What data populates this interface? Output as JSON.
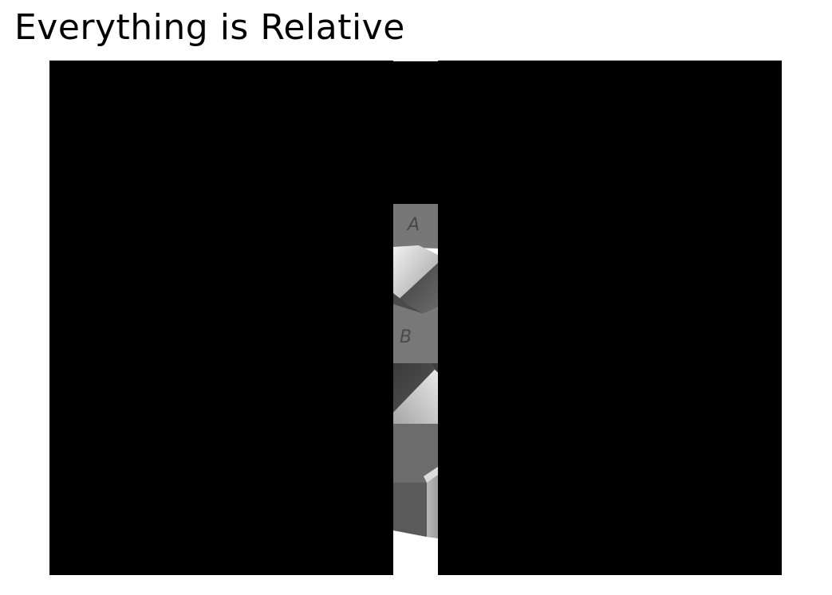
{
  "slide": {
    "title": "Everything is Relative"
  },
  "figure": {
    "illusion": "checker-shadow",
    "visible_tiles": [
      {
        "label": "A"
      },
      {
        "label": "B"
      }
    ],
    "colors": {
      "mask": "#000000",
      "background": "#ffffff",
      "tile_a": "#777777",
      "tile_b": "#787878"
    }
  }
}
